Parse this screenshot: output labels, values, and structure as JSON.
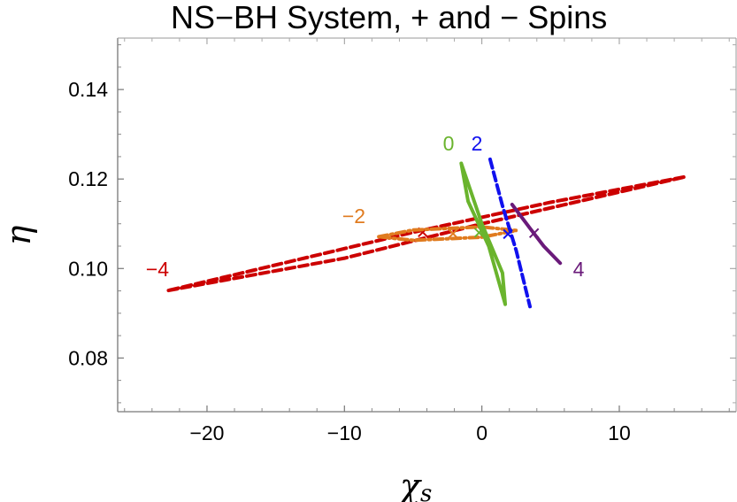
{
  "chart_data": {
    "type": "scatter",
    "title": "NS−BH System, + and − Spins",
    "xlabel": "χ",
    "xlabel_subscript": "s",
    "ylabel": "η",
    "xlim": [
      -26.5,
      18.5
    ],
    "ylim": [
      0.068,
      0.1515
    ],
    "x_ticks": [
      -20,
      -10,
      0,
      10
    ],
    "x_tick_labels": [
      "−20",
      "−10",
      "0",
      "10"
    ],
    "y_ticks": [
      0.08,
      0.1,
      0.12,
      0.14
    ],
    "y_tick_labels": [
      "0.08",
      "0.10",
      "0.12",
      "0.14"
    ],
    "grid": false,
    "series": [
      {
        "name": "−4",
        "label": "−4",
        "color": "#cc0000",
        "style": "dashed",
        "center": [
          -4.3,
          0.1081
        ],
        "outline": [
          [
            -22.8,
            0.0951
          ],
          [
            -10.0,
            0.1023
          ],
          [
            0.0,
            0.11
          ],
          [
            14.8,
            0.1205
          ],
          [
            5.0,
            0.1148
          ],
          [
            -5.0,
            0.1081
          ],
          [
            -22.8,
            0.0951
          ]
        ]
      },
      {
        "name": "−2",
        "label": "−2",
        "color": "#e07b1f",
        "style": "dashdot",
        "center": [
          -2.1,
          0.1078
        ],
        "outline": [
          [
            -7.5,
            0.1071
          ],
          [
            -5.0,
            0.1086
          ],
          [
            0.0,
            0.1093
          ],
          [
            2.5,
            0.1085
          ],
          [
            0.0,
            0.107
          ],
          [
            -5.0,
            0.1063
          ],
          [
            -7.5,
            0.1071
          ]
        ]
      },
      {
        "name": "0",
        "label": "0",
        "color": "#6ab42d",
        "style": "solid",
        "center": [
          -0.2,
          0.108
        ],
        "outline": [
          [
            -1.5,
            0.1235
          ],
          [
            -1.0,
            0.115
          ],
          [
            0.5,
            0.105
          ],
          [
            1.7,
            0.092
          ],
          [
            1.5,
            0.099
          ],
          [
            0.0,
            0.11
          ],
          [
            -1.5,
            0.1235
          ]
        ]
      },
      {
        "name": "2",
        "label": "2",
        "color": "#1010ee",
        "style": "dashed",
        "center": [
          1.9,
          0.1077
        ],
        "outline": [
          [
            0.6,
            0.1244
          ],
          [
            1.5,
            0.114
          ],
          [
            2.5,
            0.104
          ],
          [
            3.5,
            0.0915
          ]
        ]
      },
      {
        "name": "4",
        "label": "4",
        "color": "#6a1a7a",
        "style": "solid",
        "center": [
          3.8,
          0.1079
        ],
        "outline": [
          [
            2.2,
            0.1143
          ],
          [
            3.5,
            0.109
          ],
          [
            4.5,
            0.105
          ],
          [
            5.7,
            0.1012
          ]
        ]
      }
    ]
  }
}
